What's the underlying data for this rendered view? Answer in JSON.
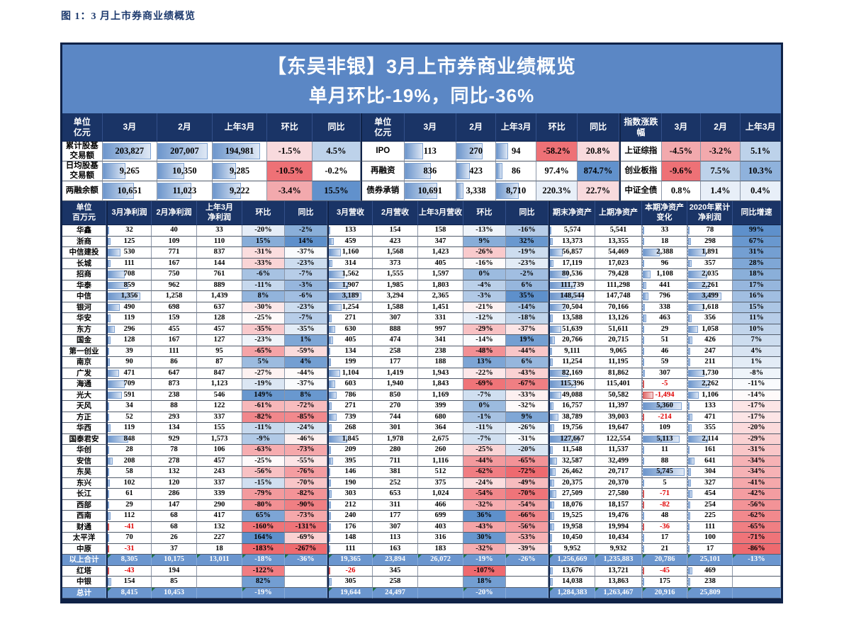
{
  "caption": "图 1：3 月上市券商业绩概览",
  "banner": {
    "line1": "【东吴非银】3月上市券商业绩概览",
    "line2": "单月环比-19%，同比-36%"
  },
  "colors": {
    "header_navy": "#1A3466",
    "banner_blue": "#5B87C5",
    "total_row_blue": "#6B96CF",
    "bar_blue": "#6D96CC",
    "bar_red": "#E06A6A",
    "negative_text_red": "#E00000",
    "scale_red": "#EE6A6F",
    "scale_white": "#FFFFFF",
    "scale_blue": "#5E90CB",
    "pct_classes": {
      "r3": "#EE7176",
      "r2": "#F2A9AD",
      "r1": "#F8DADD",
      "w": "#FFFFFF",
      "b1": "#E8EFF8",
      "b2": "#BDD2EA",
      "b3": "#8FB2DC",
      "b4": "#6191CC"
    }
  },
  "top_section": {
    "headers": [
      "单位\n亿元",
      "3月",
      "2月",
      "上年3月",
      "环比",
      "同比",
      "单位\n亿元",
      "3月",
      "2月",
      "上年3月",
      "环比",
      "同比",
      "指数涨跌幅",
      "3月",
      "2月",
      "上年3月"
    ],
    "rows": [
      {
        "left_name": "累计股基\n交易额",
        "left_vals": [
          {
            "v": "203,827",
            "bar": 90
          },
          {
            "v": "207,007",
            "bar": 92
          },
          {
            "v": "194,981",
            "bar": 88
          }
        ],
        "left_pcts": [
          {
            "v": "-1.5%",
            "c": "r1"
          },
          {
            "v": "4.5%",
            "c": "b2"
          }
        ],
        "mid_name": "IPO",
        "mid_vals": [
          {
            "v": "113",
            "bar": 36
          },
          {
            "v": "270",
            "bar": 66
          },
          {
            "v": "94",
            "bar": 30
          }
        ],
        "mid_pcts": [
          {
            "v": "-58.2%",
            "c": "r3"
          },
          {
            "v": "20.8%",
            "c": "r1"
          }
        ],
        "idx_name": "上证综指",
        "idx_pcts": [
          {
            "v": "-4.5%",
            "c": "r2"
          },
          {
            "v": "-3.2%",
            "c": "r2"
          },
          {
            "v": "5.1%",
            "c": "b2"
          }
        ]
      },
      {
        "left_name": "日均股基\n交易额",
        "left_vals": [
          {
            "v": "9,265",
            "bar": 42
          },
          {
            "v": "10,350",
            "bar": 50
          },
          {
            "v": "9,285",
            "bar": 44
          }
        ],
        "left_pcts": [
          {
            "v": "-10.5%",
            "c": "r3"
          },
          {
            "v": "-0.2%",
            "c": "w"
          }
        ],
        "mid_name": "再融资",
        "mid_vals": [
          {
            "v": "836",
            "bar": 52
          },
          {
            "v": "423",
            "bar": 34
          },
          {
            "v": "86",
            "bar": 16
          }
        ],
        "mid_pcts": [
          {
            "v": "97.4%",
            "c": "w"
          },
          {
            "v": "874.7%",
            "c": "b4"
          }
        ],
        "idx_name": "创业板指",
        "idx_pcts": [
          {
            "v": "-9.6%",
            "c": "r3"
          },
          {
            "v": "7.5%",
            "c": "b2"
          },
          {
            "v": "10.3%",
            "c": "b3"
          }
        ]
      },
      {
        "left_name": "两融余额",
        "left_vals": [
          {
            "v": "10,651",
            "bar": 58
          },
          {
            "v": "11,023",
            "bar": 62
          },
          {
            "v": "9,222",
            "bar": 52
          }
        ],
        "left_pcts": [
          {
            "v": "-3.4%",
            "c": "r2"
          },
          {
            "v": "15.5%",
            "c": "b4"
          }
        ],
        "mid_name": "债券承销",
        "mid_vals": [
          {
            "v": "10,691",
            "bar": 64
          },
          {
            "v": "3,338",
            "bar": 18
          },
          {
            "v": "8,710",
            "bar": 56
          }
        ],
        "mid_pcts": [
          {
            "v": "220.3%",
            "c": "b1"
          },
          {
            "v": "22.7%",
            "c": "r1"
          }
        ],
        "idx_name": "中证全债",
        "idx_pcts": [
          {
            "v": "0.8%",
            "c": "w"
          },
          {
            "v": "1.4%",
            "c": "b1"
          },
          {
            "v": "0.4%",
            "c": "b1"
          }
        ]
      }
    ]
  },
  "main_table": {
    "headers": [
      "单位\n百万元",
      "3月净利润",
      "2月净利润",
      "上年3月\n净利润",
      "环比",
      "同比",
      "3月营收",
      "2月营收",
      "上年3月营收",
      "环比",
      "同比",
      "期末净资产",
      "上期净资产",
      "本期净资产\n变化",
      "2020年累计\n净利润",
      "同比增速"
    ],
    "bar_columns": [
      0,
      5,
      10,
      12,
      13
    ],
    "percent_columns": [
      3,
      4,
      8,
      9,
      14
    ],
    "rows": [
      {
        "name": "华鑫",
        "type": "normal",
        "cells": [
          "32",
          "40",
          "33",
          "-20%",
          "-2%",
          "133",
          "154",
          "158",
          "-13%",
          "-16%",
          "5,574",
          "5,541",
          "33",
          "78",
          "99%"
        ]
      },
      {
        "name": "浙商",
        "type": "normal",
        "cells": [
          "125",
          "109",
          "110",
          "15%",
          "14%",
          "459",
          "423",
          "347",
          "9%",
          "32%",
          "13,373",
          "13,355",
          "18",
          "298",
          "67%"
        ]
      },
      {
        "name": "中信建投",
        "type": "normal",
        "cells": [
          "530",
          "771",
          "837",
          "-31%",
          "-37%",
          "1,160",
          "1,568",
          "1,423",
          "-26%",
          "-19%",
          "56,857",
          "54,469",
          "2,388",
          "1,891",
          "31%"
        ]
      },
      {
        "name": "长城",
        "type": "normal",
        "cells": [
          "111",
          "167",
          "144",
          "-33%",
          "-23%",
          "314",
          "373",
          "405",
          "-16%",
          "-23%",
          "17,119",
          "17,023",
          "96",
          "357",
          "28%"
        ]
      },
      {
        "name": "招商",
        "type": "normal",
        "cells": [
          "708",
          "750",
          "761",
          "-6%",
          "-7%",
          "1,562",
          "1,555",
          "1,597",
          "0%",
          "-2%",
          "80,536",
          "79,428",
          "1,108",
          "2,035",
          "18%"
        ]
      },
      {
        "name": "华泰",
        "type": "normal",
        "cells": [
          "859",
          "962",
          "889",
          "-11%",
          "-3%",
          "1,907",
          "1,985",
          "1,803",
          "-4%",
          "6%",
          "111,739",
          "111,298",
          "441",
          "2,261",
          "17%"
        ]
      },
      {
        "name": "中信",
        "type": "normal",
        "cells": [
          "1,356",
          "1,258",
          "1,439",
          "8%",
          "-6%",
          "3,189",
          "3,294",
          "2,365",
          "-3%",
          "35%",
          "148,544",
          "147,748",
          "796",
          "3,499",
          "16%"
        ]
      },
      {
        "name": "银河",
        "type": "normal",
        "cells": [
          "490",
          "698",
          "637",
          "-30%",
          "-23%",
          "1,254",
          "1,588",
          "1,451",
          "-21%",
          "-14%",
          "70,504",
          "70,166",
          "338",
          "1,618",
          "15%"
        ]
      },
      {
        "name": "华安",
        "type": "normal",
        "cells": [
          "119",
          "159",
          "128",
          "-25%",
          "-7%",
          "271",
          "307",
          "331",
          "-12%",
          "-18%",
          "13,588",
          "13,126",
          "463",
          "356",
          "11%"
        ]
      },
      {
        "name": "东方",
        "type": "normal",
        "cells": [
          "296",
          "455",
          "457",
          "-35%",
          "-35%",
          "630",
          "888",
          "997",
          "-29%",
          "-37%",
          "51,639",
          "51,611",
          "29",
          "1,058",
          "10%"
        ]
      },
      {
        "name": "国金",
        "type": "normal",
        "cells": [
          "128",
          "167",
          "127",
          "-23%",
          "1%",
          "405",
          "474",
          "341",
          "-14%",
          "19%",
          "20,766",
          "20,715",
          "51",
          "426",
          "7%"
        ]
      },
      {
        "name": "第一创业",
        "type": "normal",
        "cells": [
          "39",
          "111",
          "95",
          "-65%",
          "-59%",
          "134",
          "258",
          "238",
          "-48%",
          "-44%",
          "9,111",
          "9,065",
          "46",
          "247",
          "4%"
        ]
      },
      {
        "name": "南京",
        "type": "normal",
        "cells": [
          "90",
          "86",
          "87",
          "5%",
          "4%",
          "199",
          "177",
          "188",
          "13%",
          "6%",
          "11,254",
          "11,195",
          "59",
          "211",
          "1%"
        ]
      },
      {
        "name": "广发",
        "type": "normal",
        "cells": [
          "471",
          "647",
          "847",
          "-27%",
          "-44%",
          "1,104",
          "1,419",
          "1,943",
          "-22%",
          "-43%",
          "82,169",
          "81,862",
          "307",
          "1,730",
          "-8%"
        ]
      },
      {
        "name": "海通",
        "type": "normal",
        "cells": [
          "709",
          "873",
          "1,123",
          "-19%",
          "-37%",
          "603",
          "1,940",
          "1,843",
          "-69%",
          "-67%",
          "115,396",
          "115,401",
          "-5",
          "2,262",
          "-11%"
        ]
      },
      {
        "name": "光大",
        "type": "normal",
        "cells": [
          "591",
          "238",
          "546",
          "149%",
          "8%",
          "786",
          "850",
          "1,169",
          "-7%",
          "-33%",
          "49,088",
          "50,582",
          "-1,494",
          "1,106",
          "-14%"
        ]
      },
      {
        "name": "天风",
        "type": "normal",
        "cells": [
          "34",
          "88",
          "122",
          "-61%",
          "-72%",
          "271",
          "270",
          "399",
          "0%",
          "-32%",
          "16,757",
          "11,397",
          "5,360",
          "133",
          "-17%"
        ]
      },
      {
        "name": "方正",
        "type": "normal",
        "cells": [
          "52",
          "293",
          "337",
          "-82%",
          "-85%",
          "739",
          "744",
          "680",
          "-1%",
          "9%",
          "38,789",
          "39,003",
          "-214",
          "471",
          "-17%"
        ]
      },
      {
        "name": "华西",
        "type": "normal",
        "cells": [
          "119",
          "134",
          "155",
          "-11%",
          "-24%",
          "268",
          "301",
          "364",
          "-11%",
          "-26%",
          "19,756",
          "19,647",
          "109",
          "355",
          "-20%"
        ]
      },
      {
        "name": "国泰君安",
        "type": "normal",
        "cells": [
          "848",
          "929",
          "1,573",
          "-9%",
          "-46%",
          "1,845",
          "1,978",
          "2,675",
          "-7%",
          "-31%",
          "127,667",
          "122,554",
          "5,113",
          "2,114",
          "-29%"
        ]
      },
      {
        "name": "华创",
        "type": "normal",
        "cells": [
          "28",
          "78",
          "106",
          "-63%",
          "-73%",
          "209",
          "280",
          "260",
          "-25%",
          "-20%",
          "11,548",
          "11,537",
          "11",
          "161",
          "-31%"
        ]
      },
      {
        "name": "安信",
        "type": "normal",
        "cells": [
          "208",
          "278",
          "457",
          "-25%",
          "-55%",
          "395",
          "711",
          "1,116",
          "-44%",
          "-65%",
          "32,587",
          "32,499",
          "88",
          "641",
          "-34%"
        ]
      },
      {
        "name": "东吴",
        "type": "normal",
        "cells": [
          "58",
          "132",
          "243",
          "-56%",
          "-76%",
          "146",
          "381",
          "512",
          "-62%",
          "-72%",
          "26,462",
          "20,717",
          "5,745",
          "304",
          "-34%"
        ]
      },
      {
        "name": "东兴",
        "type": "normal",
        "cells": [
          "102",
          "120",
          "337",
          "-15%",
          "-70%",
          "190",
          "252",
          "375",
          "-24%",
          "-49%",
          "20,375",
          "20,370",
          "5",
          "327",
          "-41%"
        ]
      },
      {
        "name": "长江",
        "type": "normal",
        "cells": [
          "61",
          "286",
          "339",
          "-79%",
          "-82%",
          "303",
          "653",
          "1,024",
          "-54%",
          "-70%",
          "27,509",
          "27,580",
          "-71",
          "454",
          "-42%"
        ]
      },
      {
        "name": "西部",
        "type": "normal",
        "cells": [
          "29",
          "147",
          "290",
          "-80%",
          "-90%",
          "212",
          "311",
          "466",
          "-32%",
          "-54%",
          "18,076",
          "18,157",
          "-82",
          "254",
          "-56%"
        ]
      },
      {
        "name": "西南",
        "type": "normal",
        "cells": [
          "112",
          "68",
          "417",
          "65%",
          "-73%",
          "240",
          "177",
          "699",
          "36%",
          "-66%",
          "19,525",
          "19,476",
          "48",
          "225",
          "-62%"
        ]
      },
      {
        "name": "财通",
        "type": "normal",
        "cells": [
          "-41",
          "68",
          "132",
          "-160%",
          "-131%",
          "176",
          "307",
          "403",
          "-43%",
          "-56%",
          "19,958",
          "19,994",
          "-36",
          "111",
          "-65%"
        ]
      },
      {
        "name": "太平洋",
        "type": "normal",
        "cells": [
          "70",
          "26",
          "227",
          "164%",
          "-69%",
          "148",
          "113",
          "316",
          "30%",
          "-53%",
          "10,450",
          "10,434",
          "17",
          "100",
          "-71%"
        ]
      },
      {
        "name": "中原",
        "type": "normal",
        "cells": [
          "-31",
          "37",
          "18",
          "-183%",
          "-267%",
          "111",
          "163",
          "183",
          "-32%",
          "-39%",
          "9,952",
          "9,932",
          "21",
          "17",
          "-86%"
        ]
      },
      {
        "name": "以上合计",
        "type": "total",
        "cells": [
          "8,305",
          "10,175",
          "13,011",
          "-18%",
          "-36%",
          "19,365",
          "23,894",
          "26,072",
          "-19%",
          "-26%",
          "1,256,669",
          "1,235,883",
          "20,786",
          "25,101",
          "-13%"
        ]
      },
      {
        "name": "红塔",
        "type": "normal",
        "cells": [
          "-43",
          "194",
          "",
          "-122%",
          "",
          "-26",
          "345",
          "",
          "-107%",
          "",
          "13,676",
          "13,721",
          "-45",
          "469",
          ""
        ]
      },
      {
        "name": "中银",
        "type": "normal",
        "cells": [
          "154",
          "85",
          "",
          "82%",
          "",
          "305",
          "258",
          "",
          "18%",
          "",
          "14,038",
          "13,863",
          "175",
          "238",
          ""
        ]
      },
      {
        "name": "总计",
        "type": "total",
        "cells": [
          "8,415",
          "10,453",
          "",
          "-19%",
          "",
          "19,644",
          "24,497",
          "",
          "-20%",
          "",
          "1,284,383",
          "1,263,467",
          "20,916",
          "25,809",
          ""
        ]
      }
    ]
  }
}
